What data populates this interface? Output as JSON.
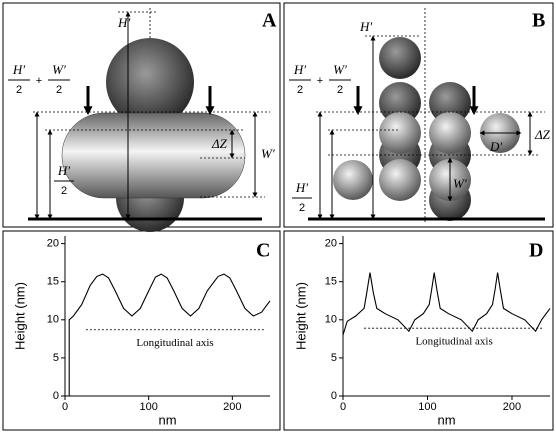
{
  "diagrams": [
    {
      "panel": "A",
      "height": "H′",
      "sum_a": "H′",
      "sum_a_den": "2",
      "plus": "+",
      "sum_b": "W′",
      "sum_b_den": "2",
      "delta_z": "ΔZ",
      "width": "W′",
      "half_num": "H′",
      "half_den": "2"
    },
    {
      "panel": "B",
      "height": "H′",
      "sum_a": "H′",
      "sum_a_den": "2",
      "plus": "+",
      "sum_b": "W′",
      "sum_b_den": "2",
      "delta_z": "ΔZ",
      "diameter": "D′",
      "width": "W′",
      "half_num": "H′",
      "half_den": "2"
    }
  ],
  "chart_data": [
    {
      "type": "line",
      "panel": "C",
      "ylabel": "Height (nm)",
      "xlabel": "nm",
      "annotation": "Longitudinal axis",
      "x": [
        5,
        5,
        10,
        20,
        30,
        38,
        45,
        52,
        60,
        70,
        80,
        90,
        100,
        108,
        115,
        122,
        130,
        140,
        150,
        160,
        170,
        183,
        190,
        197,
        205,
        215,
        225,
        235,
        245
      ],
      "values": [
        0,
        10,
        10.5,
        12,
        14.5,
        15.7,
        16,
        15.5,
        13.8,
        11.5,
        10.5,
        11.5,
        13.8,
        15.6,
        16,
        15.5,
        13.8,
        11.5,
        10.5,
        11.5,
        13.8,
        15.7,
        16,
        15.5,
        13.8,
        11.5,
        10.5,
        11,
        12.5
      ],
      "color": "#000000",
      "xlim": [
        0,
        245
      ],
      "ylim": [
        0,
        21
      ],
      "xticks": [
        0,
        100,
        200
      ],
      "yticks": [
        0,
        5,
        10,
        15,
        20
      ],
      "reference_line": {
        "y": 8.7,
        "x": [
          25,
          238
        ]
      }
    },
    {
      "type": "line",
      "panel": "D",
      "ylabel": "Height (nm)",
      "xlabel": "nm",
      "annotation": "Longitudinal axis",
      "x": [
        0,
        5,
        15,
        25,
        28,
        32,
        36,
        40,
        50,
        65,
        78,
        85,
        95,
        102,
        105,
        108,
        111,
        115,
        125,
        140,
        153,
        160,
        170,
        177,
        180,
        183,
        186,
        190,
        200,
        215,
        228,
        235,
        245
      ],
      "values": [
        8,
        9.8,
        10.5,
        11.5,
        13.5,
        16.2,
        13.5,
        11.5,
        10.8,
        10,
        8.5,
        10,
        10.8,
        12,
        14,
        16.2,
        14,
        11.5,
        10.8,
        10,
        8.5,
        10,
        10.8,
        12,
        14,
        16.2,
        14,
        11.5,
        10.8,
        10,
        8.5,
        10,
        11.5
      ],
      "color": "#000000",
      "xlim": [
        0,
        245
      ],
      "ylim": [
        0,
        21
      ],
      "xticks": [
        0,
        100,
        200
      ],
      "yticks": [
        0,
        5,
        10,
        15,
        20
      ],
      "reference_line": {
        "y": 8.9,
        "x": [
          25,
          238
        ]
      }
    }
  ]
}
